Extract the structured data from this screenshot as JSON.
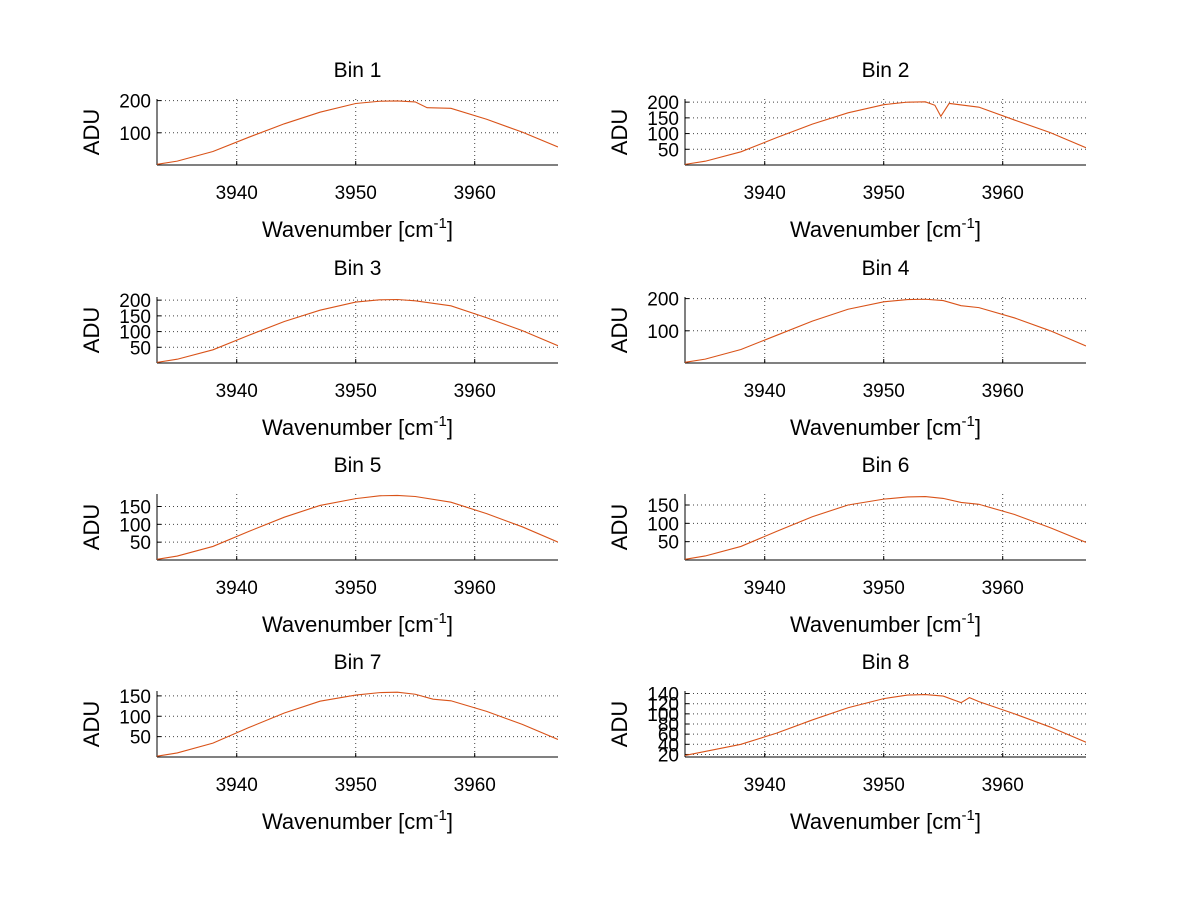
{
  "chart_data": {
    "type": "line",
    "colors": {
      "trace": "#d95319",
      "grid": "#444444",
      "background": "#ffffff"
    },
    "shared": {
      "xlabel": "Wavenumber [cm",
      "xlabel_superscript": "-1",
      "xlabel_suffix": "]",
      "ylabel": "ADU",
      "xlim": [
        3933.3,
        3967
      ],
      "xticks": [
        3940,
        3950,
        3960
      ],
      "grid": true
    },
    "panels": [
      {
        "title": "Bin 1",
        "ylim": [
          0,
          205
        ],
        "yticks": [
          100,
          200
        ],
        "x": [
          3933.3,
          3935,
          3938,
          3941,
          3944,
          3947,
          3950,
          3952,
          3953.5,
          3955,
          3956,
          3958,
          3961,
          3964,
          3967
        ],
        "y": [
          2,
          12,
          42,
          86,
          128,
          164,
          191,
          198,
          199,
          196,
          178,
          176,
          142,
          102,
          56
        ]
      },
      {
        "title": "Bin 2",
        "ylim": [
          0,
          210
        ],
        "yticks": [
          50,
          100,
          150,
          200
        ],
        "x": [
          3933.3,
          3935,
          3938,
          3941,
          3944,
          3947,
          3950,
          3952,
          3953.5,
          3954.3,
          3954.8,
          3955.5,
          3958,
          3961,
          3964,
          3967
        ],
        "y": [
          2,
          12,
          42,
          87,
          130,
          166,
          192,
          200,
          201,
          190,
          155,
          196,
          184,
          143,
          103,
          55
        ]
      },
      {
        "title": "Bin 3",
        "ylim": [
          0,
          210
        ],
        "yticks": [
          50,
          100,
          150,
          200
        ],
        "x": [
          3933.3,
          3935,
          3938,
          3941,
          3944,
          3947,
          3950,
          3952,
          3953.5,
          3955,
          3958,
          3961,
          3964,
          3967
        ],
        "y": [
          2,
          12,
          42,
          88,
          132,
          168,
          194,
          201,
          202,
          198,
          182,
          144,
          103,
          55
        ]
      },
      {
        "title": "Bin 4",
        "ylim": [
          0,
          205
        ],
        "yticks": [
          100,
          200
        ],
        "x": [
          3933.3,
          3935,
          3938,
          3941,
          3944,
          3947,
          3950,
          3952,
          3953.5,
          3955,
          3956.5,
          3958,
          3961,
          3964,
          3967
        ],
        "y": [
          2,
          12,
          42,
          86,
          130,
          167,
          190,
          197,
          198,
          194,
          178,
          172,
          140,
          100,
          53
        ]
      },
      {
        "title": "Bin 5",
        "ylim": [
          0,
          185
        ],
        "yticks": [
          50,
          100,
          150
        ],
        "x": [
          3933.3,
          3935,
          3938,
          3941,
          3944,
          3947,
          3950,
          3952,
          3953.5,
          3955,
          3958,
          3961,
          3964,
          3967
        ],
        "y": [
          2,
          11,
          38,
          80,
          120,
          153,
          172,
          180,
          181,
          178,
          162,
          130,
          93,
          50
        ]
      },
      {
        "title": "Bin 6",
        "ylim": [
          0,
          180
        ],
        "yticks": [
          50,
          100,
          150
        ],
        "x": [
          3933.3,
          3935,
          3938,
          3941,
          3944,
          3947,
          3950,
          3952,
          3953.5,
          3955,
          3956.5,
          3958,
          3961,
          3964,
          3967
        ],
        "y": [
          2,
          11,
          37,
          78,
          118,
          150,
          166,
          172,
          173,
          168,
          157,
          152,
          124,
          88,
          48
        ]
      },
      {
        "title": "Bin 7",
        "ylim": [
          0,
          162
        ],
        "yticks": [
          50,
          100,
          150
        ],
        "x": [
          3933.3,
          3935,
          3938,
          3941,
          3944,
          3947,
          3950,
          3952,
          3953.5,
          3955,
          3956.5,
          3958,
          3961,
          3964,
          3967
        ],
        "y": [
          2,
          10,
          34,
          72,
          108,
          137,
          152,
          158,
          159,
          154,
          142,
          138,
          112,
          80,
          43
        ]
      },
      {
        "title": "Bin 8",
        "ylim": [
          15,
          145
        ],
        "yticks": [
          20,
          40,
          60,
          80,
          100,
          120,
          140
        ],
        "ytick_labels": [
          "20",
          "40",
          "60",
          "80",
          "100",
          "120",
          "140"
        ],
        "x": [
          3933.3,
          3935,
          3938,
          3941,
          3944,
          3947,
          3950,
          3952,
          3953.5,
          3955,
          3956.5,
          3957.2,
          3958,
          3961,
          3964,
          3967
        ],
        "y": [
          18,
          26,
          40,
          62,
          88,
          112,
          130,
          137,
          138,
          135,
          122,
          132,
          124,
          100,
          74,
          44
        ]
      }
    ]
  }
}
